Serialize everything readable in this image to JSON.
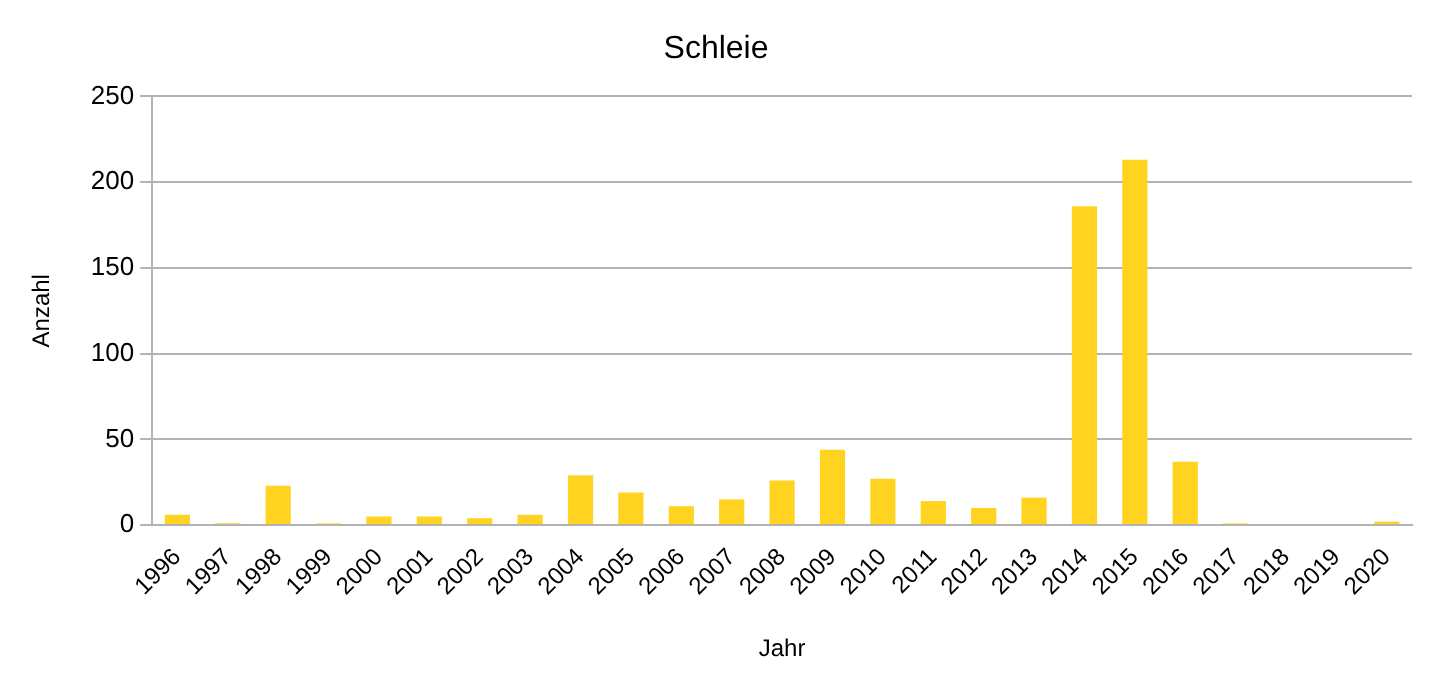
{
  "chart_data": {
    "type": "bar",
    "title": "Schleie",
    "xlabel": "Jahr",
    "ylabel": "Anzahl",
    "categories": [
      "1996",
      "1997",
      "1998",
      "1999",
      "2000",
      "2001",
      "2002",
      "2003",
      "2004",
      "2005",
      "2006",
      "2007",
      "2008",
      "2009",
      "2010",
      "2011",
      "2012",
      "2013",
      "2014",
      "2015",
      "2016",
      "2017",
      "2018",
      "2019",
      "2020"
    ],
    "values": [
      6,
      1,
      23,
      1,
      5,
      5,
      4,
      6,
      29,
      19,
      11,
      15,
      26,
      44,
      27,
      14,
      10,
      16,
      186,
      213,
      37,
      1,
      0,
      0,
      2
    ],
    "color": "#ffd320",
    "ylim": [
      0,
      250
    ],
    "yticks": [
      0,
      50,
      100,
      150,
      200,
      250
    ],
    "grid": "y",
    "legend": false
  }
}
